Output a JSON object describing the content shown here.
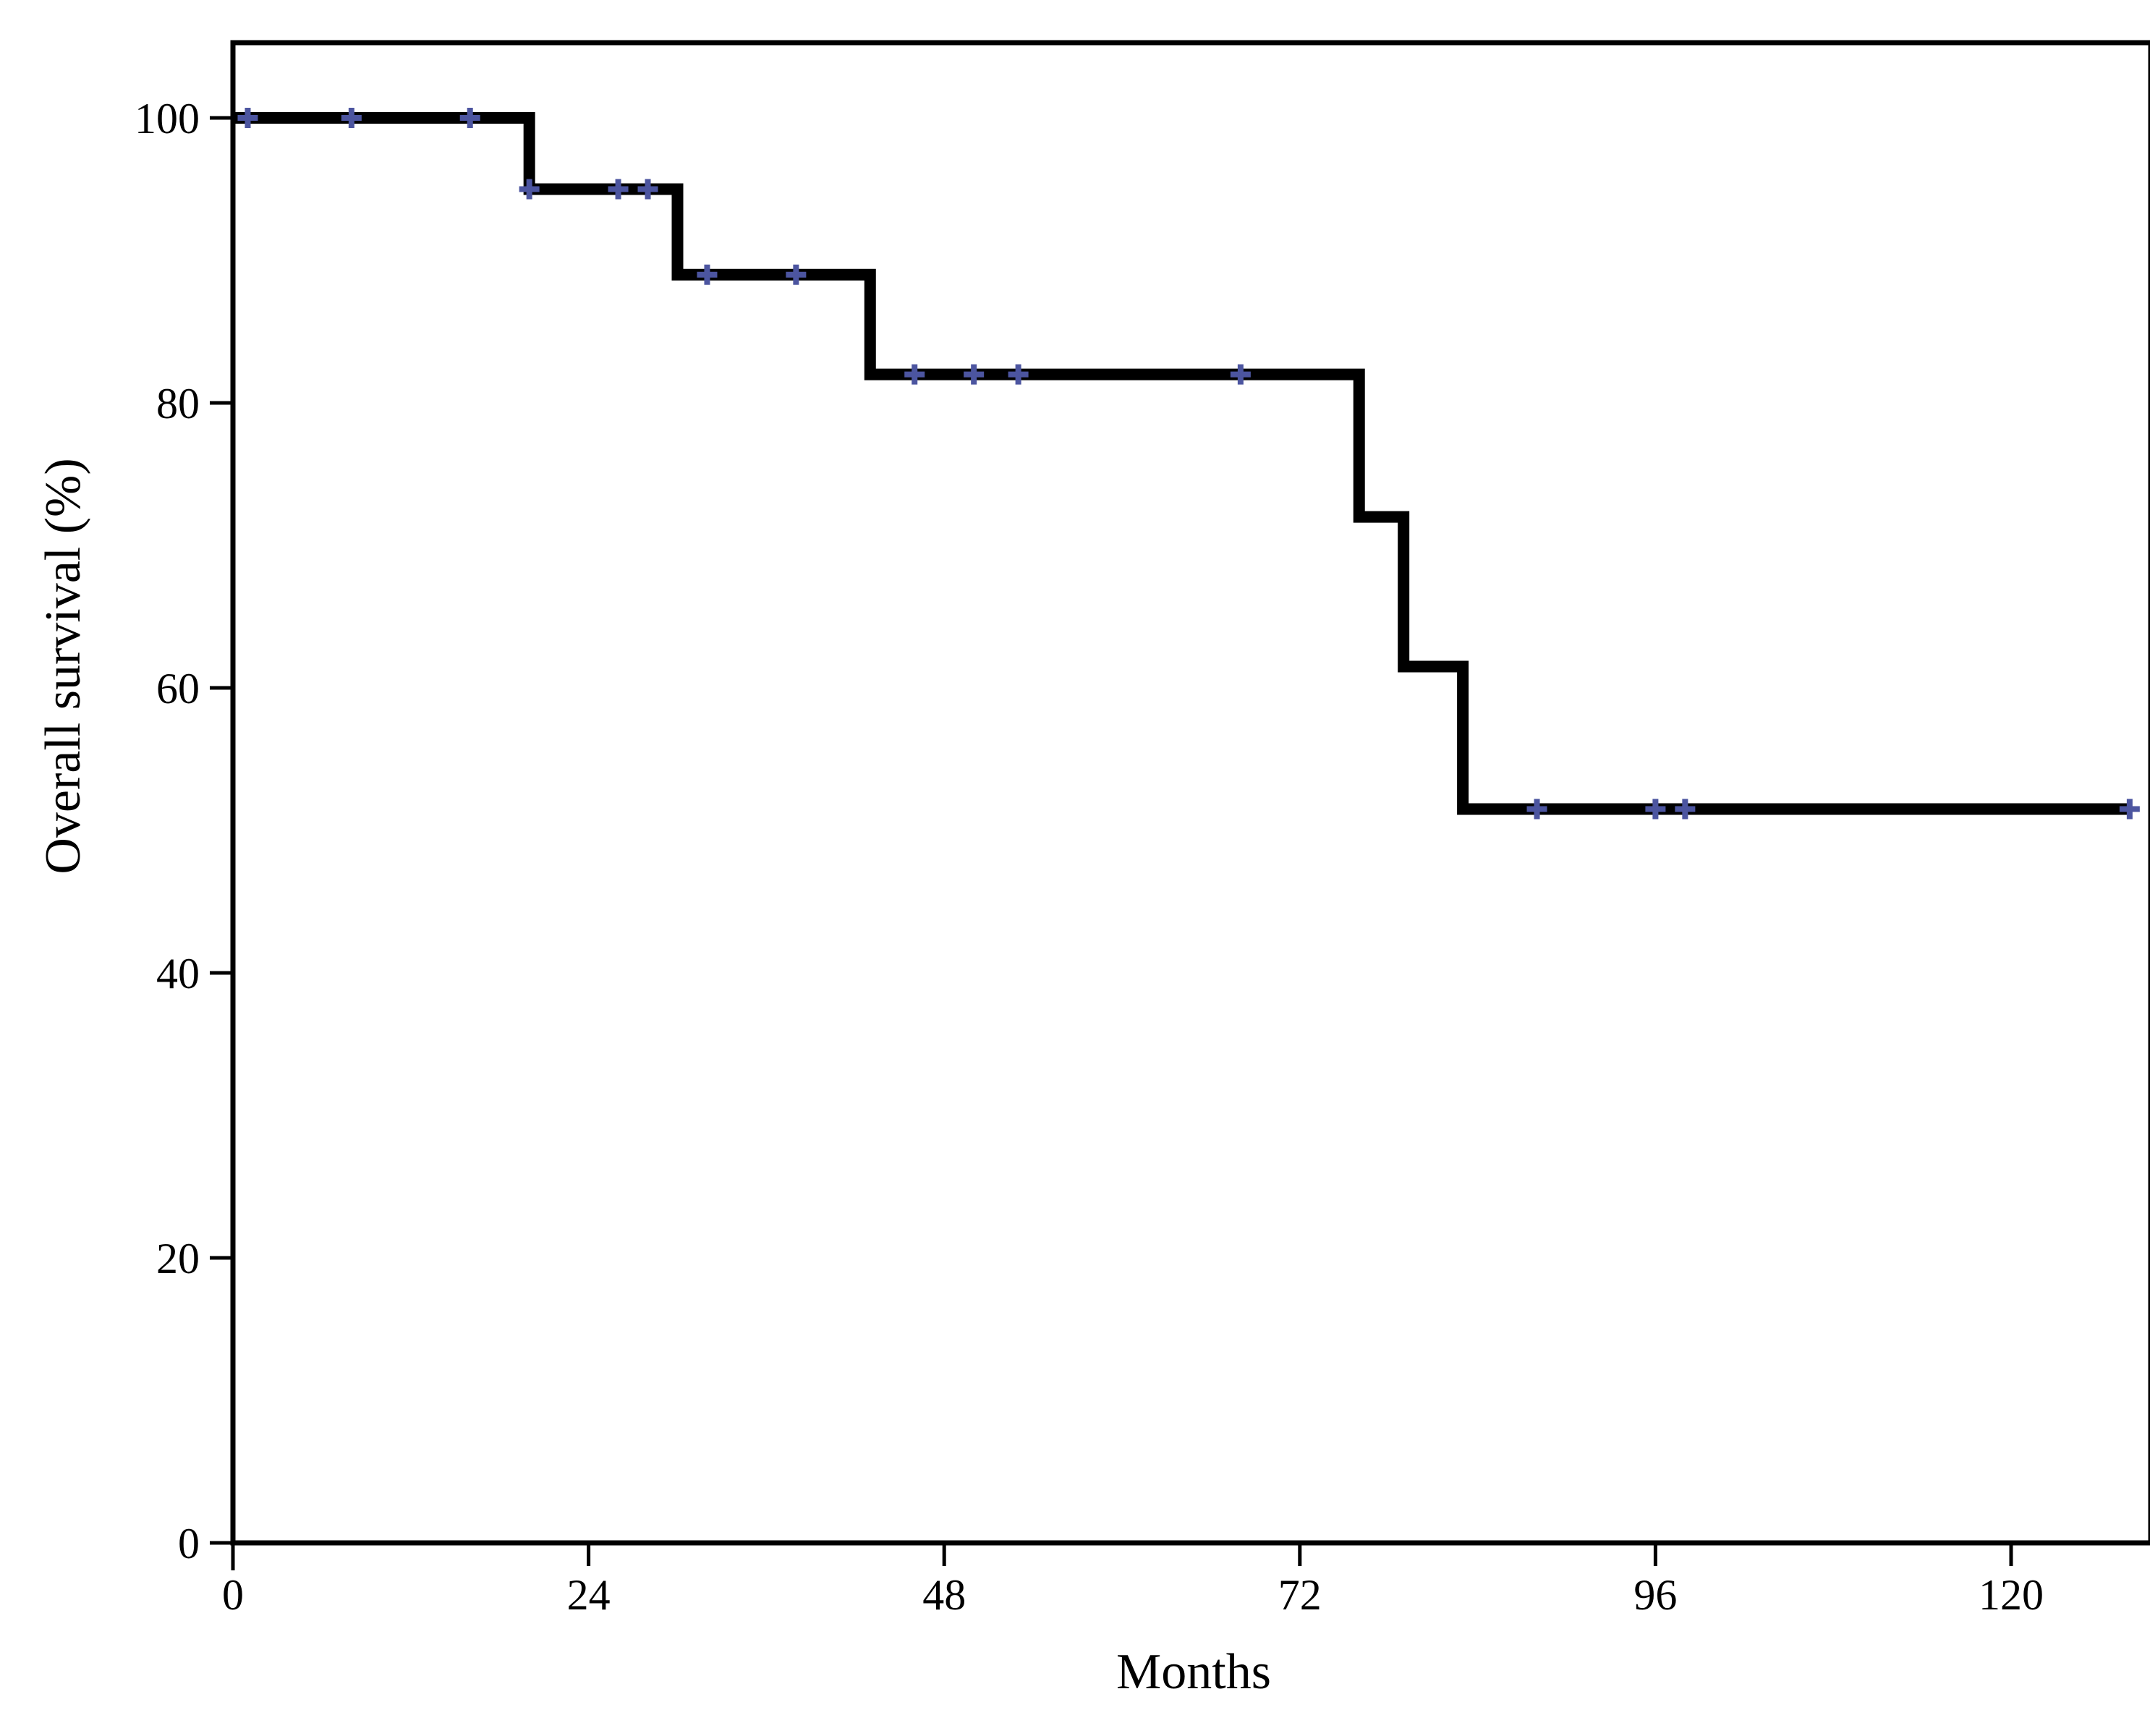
{
  "chart_data": {
    "type": "line",
    "chart_style": "kaplan-meier-step",
    "title": "",
    "xlabel": "Months",
    "ylabel": "Overall survival (%)",
    "xlim": [
      0,
      129
    ],
    "ylim": [
      0,
      105
    ],
    "x_ticks": [
      0,
      24,
      48,
      72,
      96,
      120
    ],
    "y_ticks": [
      0,
      20,
      40,
      60,
      80,
      100
    ],
    "grid": false,
    "legend": false,
    "framed": true,
    "line_color": "#000000",
    "censor_color": "#4c55a0",
    "series": [
      {
        "name": "Overall survival",
        "steps": [
          {
            "month": 0,
            "pct": 100
          },
          {
            "month": 20,
            "pct": 95
          },
          {
            "month": 30,
            "pct": 89
          },
          {
            "month": 43,
            "pct": 82
          },
          {
            "month": 76,
            "pct": 72
          },
          {
            "month": 79,
            "pct": 61.5
          },
          {
            "month": 83,
            "pct": 51.5
          }
        ],
        "end_month": 128,
        "censors": [
          {
            "month": 1,
            "pct": 100
          },
          {
            "month": 8,
            "pct": 100
          },
          {
            "month": 16,
            "pct": 100
          },
          {
            "month": 20,
            "pct": 95
          },
          {
            "month": 26,
            "pct": 95
          },
          {
            "month": 28,
            "pct": 95
          },
          {
            "month": 32,
            "pct": 89
          },
          {
            "month": 38,
            "pct": 89
          },
          {
            "month": 46,
            "pct": 82
          },
          {
            "month": 50,
            "pct": 82
          },
          {
            "month": 53,
            "pct": 82
          },
          {
            "month": 68,
            "pct": 82
          },
          {
            "month": 88,
            "pct": 51.5
          },
          {
            "month": 96,
            "pct": 51.5
          },
          {
            "month": 98,
            "pct": 51.5
          },
          {
            "month": 128,
            "pct": 51.5
          }
        ]
      }
    ]
  }
}
